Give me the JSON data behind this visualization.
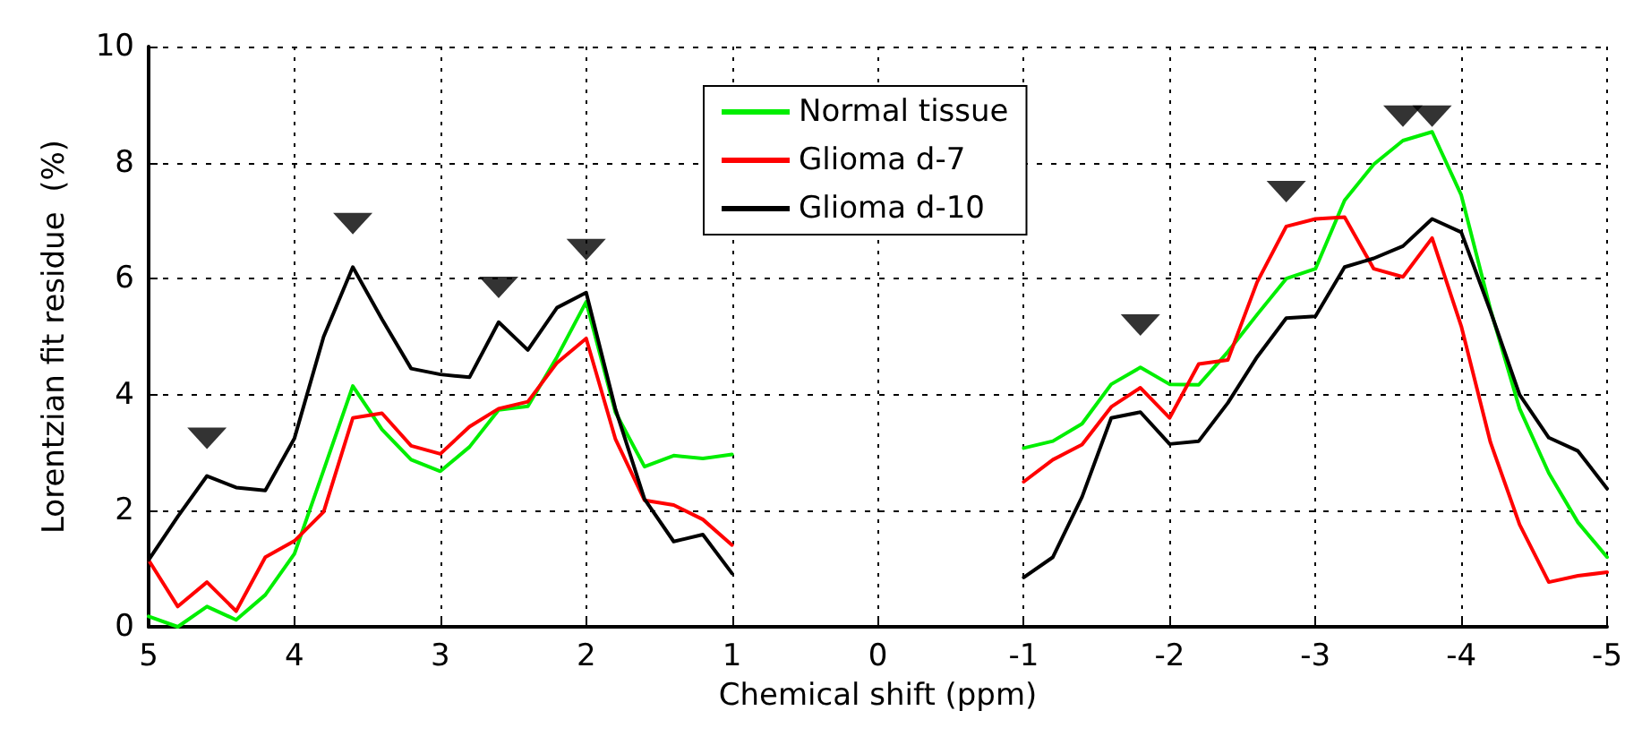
{
  "chart_data": {
    "type": "line",
    "xlabel": "Chemical shift (ppm)",
    "ylabel": "Lorentzian fit residue  (%)",
    "x": [
      5,
      4.8,
      4.6,
      4.4,
      4.2,
      4.0,
      3.8,
      3.6,
      3.4,
      3.2,
      3.0,
      2.8,
      2.6,
      2.4,
      2.2,
      2.0,
      1.8,
      1.6,
      1.4,
      1.2,
      1.0,
      0,
      -1,
      -1.2,
      -1.4,
      -1.6,
      -1.8,
      -2.0,
      -2.2,
      -2.4,
      -2.6,
      -2.8,
      -3.0,
      -3.2,
      -3.4,
      -3.6,
      -3.8,
      -4.0,
      -4.2,
      -4.4,
      -4.6,
      -4.8,
      -5.0
    ],
    "series": [
      {
        "name": "Normal tissue",
        "color": "#00ee00",
        "values": [
          0.18,
          0.0,
          0.35,
          0.12,
          0.55,
          1.26,
          2.7,
          4.15,
          3.4,
          2.88,
          2.68,
          3.1,
          3.74,
          3.8,
          4.65,
          5.6,
          3.7,
          2.76,
          2.95,
          2.9,
          2.97,
          null,
          3.08,
          3.2,
          3.5,
          4.18,
          4.47,
          4.18,
          4.17,
          4.74,
          5.38,
          6.0,
          6.17,
          7.35,
          7.97,
          8.38,
          8.53,
          7.44,
          5.47,
          3.76,
          2.65,
          1.8,
          1.2
        ]
      },
      {
        "name": "Glioma d-7",
        "color": "#ff0000",
        "values": [
          1.15,
          0.35,
          0.77,
          0.27,
          1.2,
          1.48,
          1.98,
          3.6,
          3.68,
          3.12,
          2.98,
          3.45,
          3.76,
          3.88,
          4.55,
          4.97,
          3.24,
          2.18,
          2.1,
          1.85,
          1.41,
          null,
          2.5,
          2.88,
          3.14,
          3.79,
          4.12,
          3.6,
          4.53,
          4.6,
          5.94,
          6.9,
          7.03,
          7.06,
          6.17,
          6.03,
          6.7,
          5.18,
          3.18,
          1.76,
          0.77,
          0.88,
          0.94
        ]
      },
      {
        "name": "Glioma d-10",
        "color": "#000000",
        "values": [
          1.15,
          1.9,
          2.6,
          2.4,
          2.35,
          3.25,
          5.0,
          6.2,
          5.3,
          4.45,
          4.35,
          4.3,
          5.25,
          4.77,
          5.5,
          5.76,
          3.76,
          2.2,
          1.47,
          1.59,
          0.92,
          null,
          0.85,
          1.2,
          2.24,
          3.6,
          3.7,
          3.15,
          3.2,
          3.86,
          4.65,
          5.32,
          5.35,
          6.2,
          6.35,
          6.56,
          7.03,
          6.8,
          5.44,
          4.0,
          3.26,
          3.03,
          2.38
        ]
      },
      {
        "type": "scatter",
        "color": "#000000",
        "marker": "triangle",
        "x": [
          4.6,
          3.6,
          2.6,
          2.0,
          -1.8,
          -2.8,
          -3.6,
          -3.8
        ],
        "values": [
          3.25,
          6.95,
          5.85,
          6.5,
          5.2,
          7.5,
          8.8,
          8.8
        ]
      }
    ],
    "xlim": [
      5,
      -5
    ],
    "xticks": [
      5,
      4,
      3,
      2,
      1,
      0,
      -1,
      -2,
      -3,
      -4,
      -5
    ],
    "ylim": [
      0,
      10
    ],
    "yticks": [
      0,
      2,
      4,
      6,
      8,
      10
    ],
    "grid": true,
    "legend": "top",
    "marker": "none",
    "line_style": "solid"
  }
}
